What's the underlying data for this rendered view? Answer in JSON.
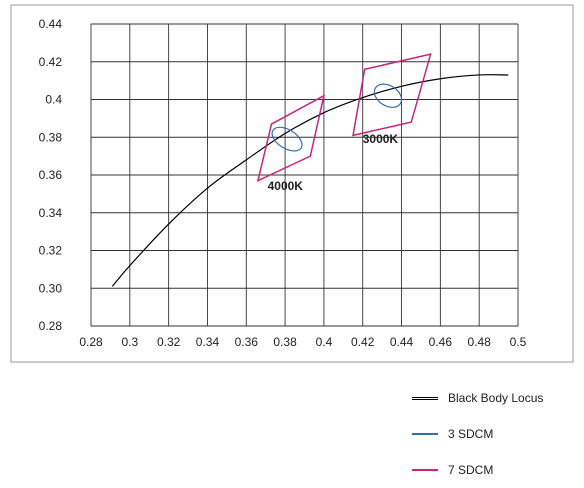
{
  "chart_data": {
    "type": "line",
    "xlim": [
      0.28,
      0.5
    ],
    "ylim": [
      0.28,
      0.44
    ],
    "x_ticks": [
      "0.28",
      "0.3",
      "0.32",
      "0.34",
      "0.36",
      "0.38",
      "0.4",
      "0.42",
      "0.44",
      "0.46",
      "0.48",
      "0.5"
    ],
    "y_ticks": [
      "0.28",
      "0.30",
      "0.32",
      "0.34",
      "0.36",
      "0.38",
      "0.4",
      "0.42",
      "0.44"
    ],
    "grid": true,
    "legend_position": "bottom-right",
    "series": [
      {
        "name": "Black Body Locus",
        "color": "#000000",
        "points": [
          [
            0.291,
            0.301
          ],
          [
            0.3,
            0.312
          ],
          [
            0.32,
            0.334
          ],
          [
            0.34,
            0.353
          ],
          [
            0.36,
            0.368
          ],
          [
            0.38,
            0.382
          ],
          [
            0.4,
            0.393
          ],
          [
            0.42,
            0.401
          ],
          [
            0.44,
            0.407
          ],
          [
            0.46,
            0.411
          ],
          [
            0.48,
            0.413
          ],
          [
            0.495,
            0.413
          ]
        ]
      },
      {
        "name": "3 SDCM",
        "color": "#2f6eb5",
        "ellipses": [
          {
            "cx": 0.381,
            "cy": 0.379,
            "rx": 0.0048,
            "ry": 0.0088,
            "angle": -58
          },
          {
            "cx": 0.433,
            "cy": 0.402,
            "rx": 0.0052,
            "ry": 0.0078,
            "angle": -58
          }
        ]
      },
      {
        "name": "7 SDCM",
        "color": "#c8247d",
        "polygons": [
          [
            [
              0.366,
              0.357
            ],
            [
              0.373,
              0.387
            ],
            [
              0.4,
              0.402
            ],
            [
              0.393,
              0.37
            ]
          ],
          [
            [
              0.415,
              0.381
            ],
            [
              0.421,
              0.416
            ],
            [
              0.455,
              0.424
            ],
            [
              0.445,
              0.388
            ]
          ]
        ]
      }
    ],
    "annotations": [
      {
        "text": "4000K",
        "x": 0.371,
        "y": 0.352
      },
      {
        "text": "3000K",
        "x": 0.42,
        "y": 0.377
      }
    ]
  }
}
